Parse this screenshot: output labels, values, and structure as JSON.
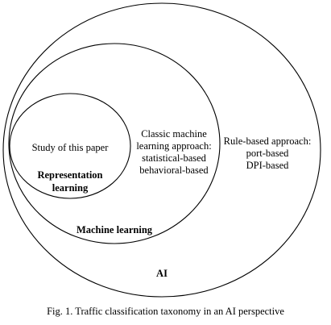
{
  "diagram": {
    "ai": {
      "label": "AI",
      "rule_based": {
        "lines": [
          "Rule-based approach:",
          "port-based",
          "DPI-based"
        ]
      }
    },
    "machine_learning": {
      "label": "Machine learning",
      "classic": {
        "lines": [
          "Classic machine",
          "learning approach:",
          "statistical-based",
          "behavioral-based"
        ]
      }
    },
    "representation_learning": {
      "study": "Study of this paper",
      "label_lines": [
        "Representation",
        "learning"
      ]
    }
  },
  "caption": "Fig. 1. Traffic classification taxonomy in an AI perspective"
}
